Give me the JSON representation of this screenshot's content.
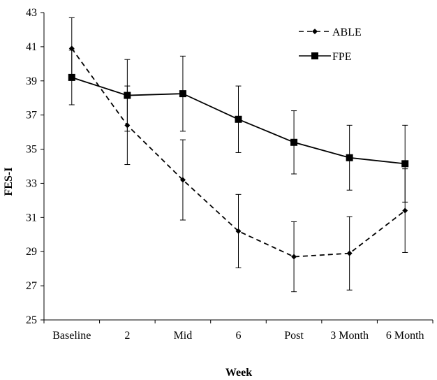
{
  "chart_data": {
    "type": "line",
    "xlabel": "Week",
    "ylabel": "FES-I",
    "categories": [
      "Baseline",
      "2",
      "Mid",
      "6",
      "Post",
      "3 Month",
      "6 Month"
    ],
    "ylim": [
      25,
      43
    ],
    "yticks": [
      25,
      27,
      29,
      31,
      33,
      35,
      37,
      39,
      41,
      43
    ],
    "legend_position": "top-right",
    "grid": false,
    "series": [
      {
        "name": "ABLE",
        "line_style": "dashed",
        "marker": "diamond",
        "color": "#000000",
        "values": [
          40.9,
          36.4,
          33.2,
          30.2,
          28.7,
          28.9,
          31.4
        ],
        "error": [
          1.8,
          2.3,
          2.35,
          2.15,
          2.05,
          2.15,
          2.45
        ]
      },
      {
        "name": "FPE",
        "line_style": "solid",
        "marker": "square",
        "color": "#000000",
        "values": [
          39.2,
          38.15,
          38.25,
          36.75,
          35.4,
          34.5,
          34.15
        ],
        "error": [
          1.6,
          2.1,
          2.2,
          1.95,
          1.85,
          1.9,
          2.25
        ]
      }
    ]
  }
}
